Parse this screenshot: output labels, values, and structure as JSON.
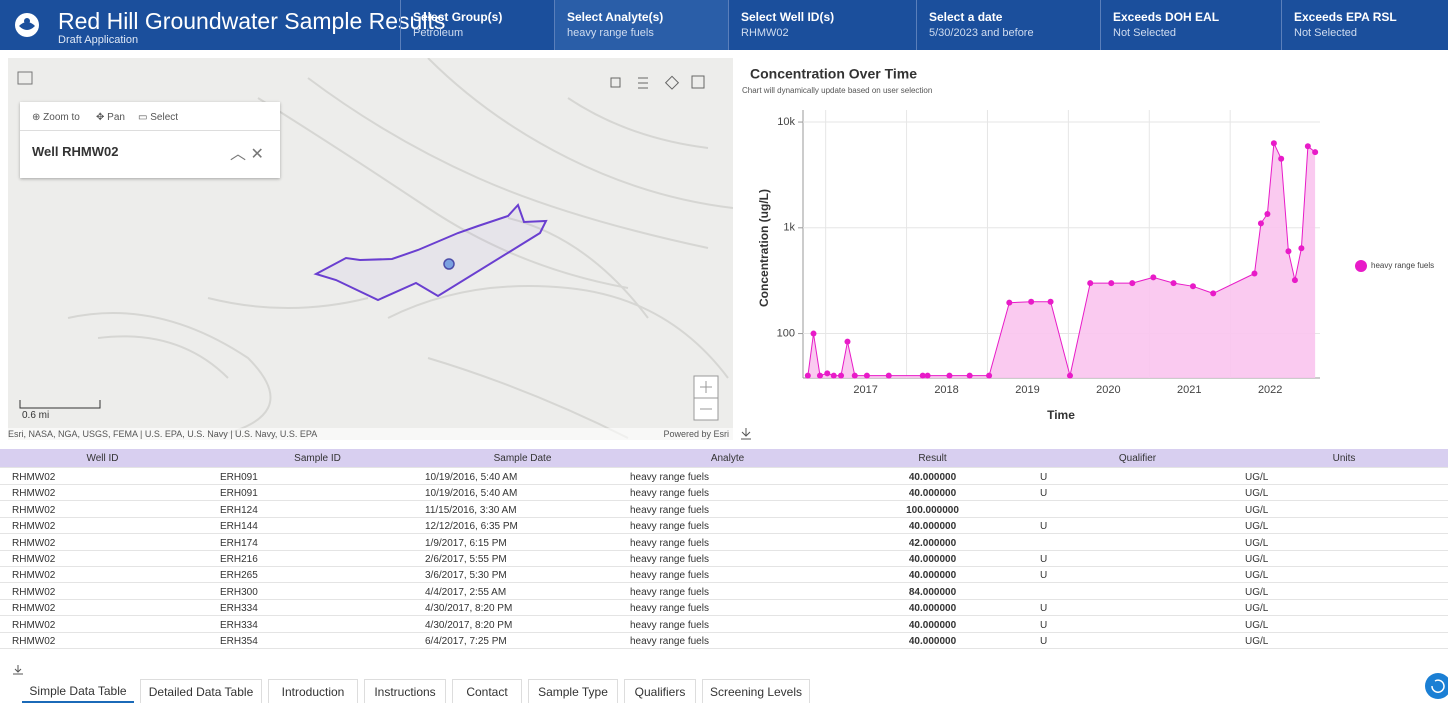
{
  "header": {
    "title": "Red Hill Groundwater Sample Results",
    "subtitle": "Draft Application",
    "filters": [
      {
        "label": "Select Group(s)",
        "value": "Petroleum"
      },
      {
        "label": "Select Analyte(s)",
        "value": "heavy range fuels"
      },
      {
        "label": "Select Well ID(s)",
        "value": "RHMW02"
      },
      {
        "label": "Select a date",
        "value": "5/30/2023 and before"
      },
      {
        "label": "Exceeds DOH EAL",
        "value": "Not Selected"
      },
      {
        "label": "Exceeds EPA RSL",
        "value": "Not Selected"
      }
    ]
  },
  "map": {
    "tools": [
      "Zoom to",
      "Pan",
      "Select"
    ],
    "popup_title": "Well RHMW02",
    "scale": "0.6 mi",
    "attribution": "Esri, NASA, NGA, USGS, FEMA | U.S. EPA, U.S. Navy | U.S. Navy, U.S. EPA",
    "powered_by": "Powered by Esri"
  },
  "chart_data": {
    "type": "area",
    "title": "Concentration Over Time",
    "subtitle": "Chart will dynamically update based on user selection",
    "x_label": "Time",
    "y_label": "Concentration (ug/L)",
    "log_y": true,
    "grid": true,
    "legend": "right",
    "xlim": [
      2016.72,
      2023.11
    ],
    "xticks": [
      2017,
      2018,
      2019,
      2020,
      2021,
      2022
    ],
    "ylim": [
      38,
      13000
    ],
    "yticks": [
      {
        "value": 100,
        "label": "100"
      },
      {
        "value": 1000,
        "label": "1k"
      },
      {
        "value": 10000,
        "label": "10k"
      }
    ],
    "series": [
      {
        "name": "heavy range fuels",
        "color": "#e81bc8",
        "fill": "#f9c4ee",
        "x": [
          2016.78,
          2016.85,
          2016.93,
          2017.02,
          2017.1,
          2017.19,
          2017.27,
          2017.36,
          2017.51,
          2017.78,
          2018.2,
          2018.26,
          2018.53,
          2018.78,
          2019.02,
          2019.27,
          2019.54,
          2019.78,
          2020.02,
          2020.27,
          2020.53,
          2020.79,
          2021.05,
          2021.3,
          2021.54,
          2021.79,
          2022.3,
          2022.38,
          2022.46,
          2022.54,
          2022.63,
          2022.72,
          2022.8,
          2022.88,
          2022.96,
          2023.05
        ],
        "values": [
          40,
          100,
          40,
          42,
          40,
          40,
          84,
          40,
          40,
          40,
          40,
          40,
          40,
          40,
          40,
          196,
          200,
          200,
          40,
          300,
          300,
          300,
          340,
          300,
          280,
          240,
          370,
          1100,
          1350,
          6300,
          4500,
          600,
          320,
          640,
          5900,
          5200
        ]
      }
    ]
  },
  "table": {
    "columns": [
      "Well ID",
      "Sample ID",
      "Sample Date",
      "Analyte",
      "Result",
      "Qualifier",
      "Units"
    ],
    "rows": [
      [
        "RHMW02",
        "ERH091",
        "10/19/2016, 5:40 AM",
        "heavy range fuels",
        "40.000000",
        "U",
        "UG/L"
      ],
      [
        "RHMW02",
        "ERH091",
        "10/19/2016, 5:40 AM",
        "heavy range fuels",
        "40.000000",
        "U",
        "UG/L"
      ],
      [
        "RHMW02",
        "ERH124",
        "11/15/2016, 3:30 AM",
        "heavy range fuels",
        "100.000000",
        "",
        "UG/L"
      ],
      [
        "RHMW02",
        "ERH144",
        "12/12/2016, 6:35 PM",
        "heavy range fuels",
        "40.000000",
        "U",
        "UG/L"
      ],
      [
        "RHMW02",
        "ERH174",
        "1/9/2017, 6:15 PM",
        "heavy range fuels",
        "42.000000",
        "",
        "UG/L"
      ],
      [
        "RHMW02",
        "ERH216",
        "2/6/2017, 5:55 PM",
        "heavy range fuels",
        "40.000000",
        "U",
        "UG/L"
      ],
      [
        "RHMW02",
        "ERH265",
        "3/6/2017, 5:30 PM",
        "heavy range fuels",
        "40.000000",
        "U",
        "UG/L"
      ],
      [
        "RHMW02",
        "ERH300",
        "4/4/2017, 2:55 AM",
        "heavy range fuels",
        "84.000000",
        "",
        "UG/L"
      ],
      [
        "RHMW02",
        "ERH334",
        "4/30/2017, 8:20 PM",
        "heavy range fuels",
        "40.000000",
        "U",
        "UG/L"
      ],
      [
        "RHMW02",
        "ERH334",
        "4/30/2017, 8:20 PM",
        "heavy range fuels",
        "40.000000",
        "U",
        "UG/L"
      ],
      [
        "RHMW02",
        "ERH354",
        "6/4/2017, 7:25 PM",
        "heavy range fuels",
        "40.000000",
        "U",
        "UG/L"
      ]
    ]
  },
  "tabs": [
    "Simple Data Table",
    "Detailed Data Table",
    "Introduction",
    "Instructions",
    "Contact",
    "Sample Type",
    "Qualifiers",
    "Screening Levels"
  ]
}
